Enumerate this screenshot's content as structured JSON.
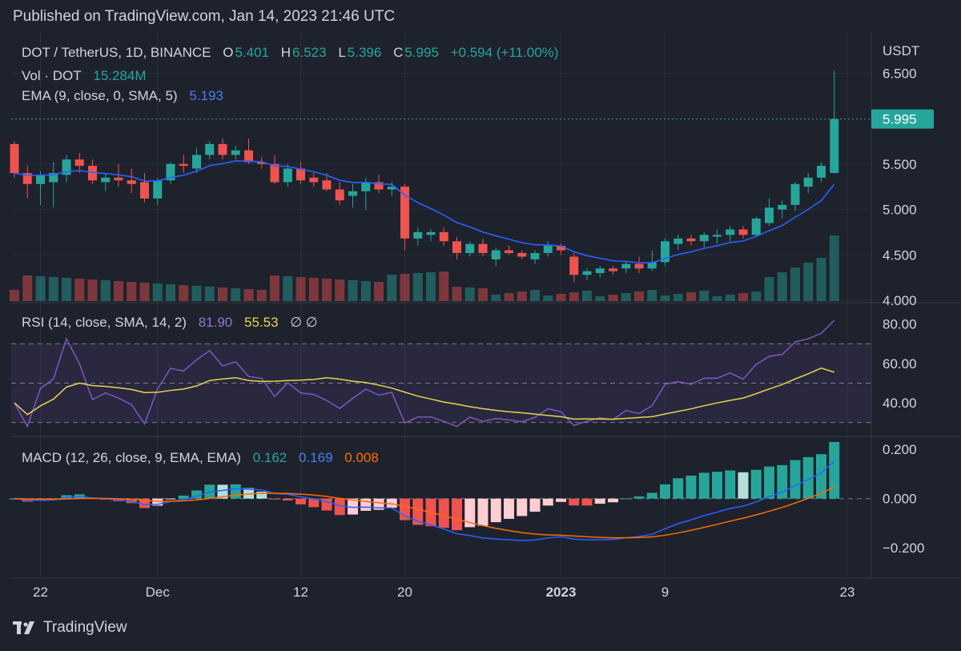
{
  "published": "Published on TradingView.com, Jan 14, 2023 21:46 UTC",
  "brand": "TradingView",
  "colors": {
    "up": "#26a69a",
    "down": "#ef5350",
    "ema": "#2962ff",
    "rsi": "#7e57c2",
    "rsi_ma": "#e8d44d",
    "macd": "#2962ff",
    "signal": "#ff6d00",
    "bg": "#1e222d"
  },
  "legend": {
    "symbol": "DOT / TetherUS, 1D, BINANCE",
    "o_label": "O",
    "o": "5.401",
    "h_label": "H",
    "h": "6.523",
    "l_label": "L",
    "l": "5.396",
    "c_label": "C",
    "c": "5.995",
    "change": "+0.594 (+11.00%)",
    "vol_label": "Vol · DOT",
    "vol": "15.284M",
    "ema_label": "EMA (9, close, 0, SMA, 5)",
    "ema": "5.193",
    "rsi_label": "RSI (14, close, SMA, 14, 2)",
    "rsi": "81.90",
    "rsi_ma": "55.53",
    "rsi_extra": "∅  ∅",
    "macd_label": "MACD (12, 26, close, 9, EMA, EMA)",
    "macd": "0.162",
    "signal": "0.169",
    "hist": "0.008"
  },
  "chart_data": {
    "type": "candlestick",
    "currency": "USDT",
    "last_price": "5.995",
    "x_labels": [
      {
        "label": "22",
        "index": 2
      },
      {
        "label": "Dec",
        "index": 11
      },
      {
        "label": "12",
        "index": 22
      },
      {
        "label": "20",
        "index": 30
      },
      {
        "label": "2023",
        "index": 42
      },
      {
        "label": "9",
        "index": 50
      },
      {
        "label": "23",
        "index": 64
      }
    ],
    "price_axis": {
      "ticks": [
        "4.000",
        "4.500",
        "5.000",
        "5.500",
        "6.500"
      ],
      "range": [
        4.0,
        6.6
      ]
    },
    "rsi_axis": {
      "ticks": [
        "80.00",
        "60.00",
        "40.00"
      ],
      "range": [
        27,
        86
      ],
      "bands": [
        30,
        50,
        70
      ]
    },
    "macd_axis": {
      "ticks": [
        "0.200",
        "0.000",
        "−0.200"
      ],
      "range": [
        -0.3,
        0.22
      ]
    },
    "ohlc": [
      [
        5.72,
        5.75,
        5.35,
        5.4
      ],
      [
        5.4,
        5.48,
        5.12,
        5.28
      ],
      [
        5.28,
        5.42,
        5.05,
        5.38
      ],
      [
        5.3,
        5.52,
        5.02,
        5.4
      ],
      [
        5.38,
        5.6,
        5.3,
        5.55
      ],
      [
        5.55,
        5.62,
        5.4,
        5.48
      ],
      [
        5.48,
        5.55,
        5.28,
        5.32
      ],
      [
        5.3,
        5.4,
        5.2,
        5.35
      ],
      [
        5.35,
        5.5,
        5.25,
        5.32
      ],
      [
        5.32,
        5.45,
        5.18,
        5.28
      ],
      [
        5.3,
        5.4,
        5.08,
        5.12
      ],
      [
        5.12,
        5.35,
        5.05,
        5.32
      ],
      [
        5.32,
        5.52,
        5.28,
        5.5
      ],
      [
        5.5,
        5.6,
        5.4,
        5.48
      ],
      [
        5.45,
        5.68,
        5.4,
        5.6
      ],
      [
        5.6,
        5.75,
        5.55,
        5.72
      ],
      [
        5.72,
        5.78,
        5.55,
        5.6
      ],
      [
        5.6,
        5.7,
        5.55,
        5.65
      ],
      [
        5.65,
        5.78,
        5.5,
        5.52
      ],
      [
        5.52,
        5.58,
        5.45,
        5.5
      ],
      [
        5.5,
        5.6,
        5.28,
        5.3
      ],
      [
        5.3,
        5.5,
        5.25,
        5.45
      ],
      [
        5.45,
        5.52,
        5.28,
        5.32
      ],
      [
        5.35,
        5.42,
        5.25,
        5.3
      ],
      [
        5.32,
        5.4,
        5.2,
        5.22
      ],
      [
        5.22,
        5.3,
        5.05,
        5.1
      ],
      [
        5.15,
        5.28,
        5.02,
        5.2
      ],
      [
        5.2,
        5.35,
        5.0,
        5.3
      ],
      [
        5.3,
        5.38,
        5.18,
        5.22
      ],
      [
        5.22,
        5.3,
        5.15,
        5.25
      ],
      [
        5.25,
        5.28,
        4.55,
        4.68
      ],
      [
        4.68,
        4.8,
        4.6,
        4.75
      ],
      [
        4.72,
        4.78,
        4.65,
        4.75
      ],
      [
        4.75,
        4.8,
        4.6,
        4.65
      ],
      [
        4.65,
        4.7,
        4.45,
        4.52
      ],
      [
        4.52,
        4.65,
        4.48,
        4.62
      ],
      [
        4.62,
        4.68,
        4.48,
        4.52
      ],
      [
        4.45,
        4.58,
        4.38,
        4.55
      ],
      [
        4.55,
        4.6,
        4.5,
        4.52
      ],
      [
        4.52,
        4.55,
        4.45,
        4.48
      ],
      [
        4.45,
        4.55,
        4.4,
        4.52
      ],
      [
        4.52,
        4.65,
        4.48,
        4.6
      ],
      [
        4.6,
        4.62,
        4.5,
        4.55
      ],
      [
        4.48,
        4.52,
        4.2,
        4.28
      ],
      [
        4.28,
        4.35,
        4.22,
        4.32
      ],
      [
        4.3,
        4.38,
        4.25,
        4.35
      ],
      [
        4.35,
        4.38,
        4.28,
        4.32
      ],
      [
        4.35,
        4.42,
        4.3,
        4.4
      ],
      [
        4.4,
        4.48,
        4.3,
        4.35
      ],
      [
        4.35,
        4.55,
        4.32,
        4.42
      ]
    ]
  }
}
